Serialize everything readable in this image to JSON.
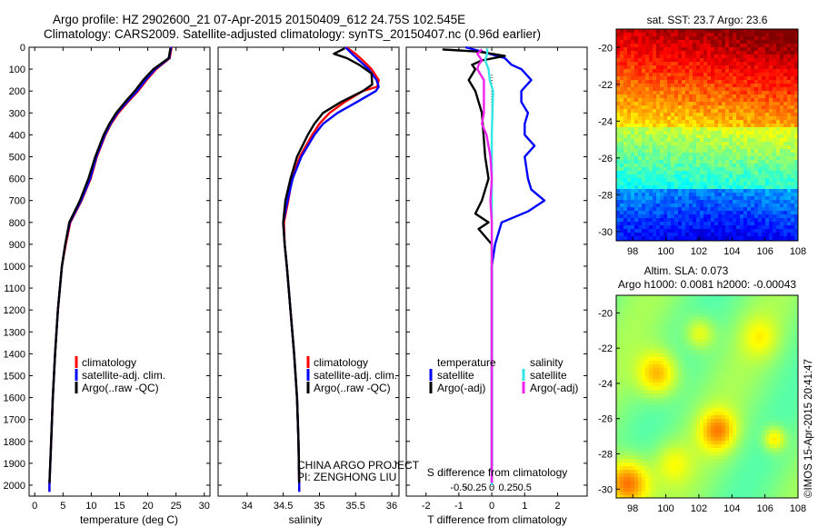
{
  "header": {
    "line1": "Argo profile: HZ 2902600_21 07-Apr-2015 20150409_612 24.75S 102.545E",
    "line2": "Climatology: CARS2009. Satellite-adjusted climatology: synTS_20150407.nc (0.96d earlier)"
  },
  "credit": {
    "project": "CHINA ARGO PROJECT",
    "pi": "PI: ZENGHONG LIU",
    "footer": "©IMOS 15-Apr-2015 20:41:47"
  },
  "colors": {
    "climatology": "#ff0000",
    "satellite": "#0000ff",
    "argo": "#000000",
    "sal_satellite": "#33e6e6",
    "sal_argo": "#ee22ee"
  },
  "depth_ticks": [
    0,
    100,
    200,
    300,
    400,
    500,
    600,
    700,
    800,
    900,
    1000,
    1100,
    1200,
    1300,
    1400,
    1500,
    1600,
    1700,
    1800,
    1900,
    2000
  ],
  "chart_data": [
    {
      "type": "line",
      "panel": "temperature",
      "xlabel": "temperature (deg C)",
      "xlim": [
        -1,
        31
      ],
      "xticks": [
        0,
        5,
        10,
        15,
        20,
        25,
        30
      ],
      "ylim": [
        2050,
        0
      ],
      "legend": {
        "placement": "lower-left",
        "entries": [
          "climatology",
          "satellite-adj. clim.",
          "Argo(..raw -QC)"
        ]
      },
      "series": [
        {
          "name": "climatology",
          "color": "#ff0000",
          "depth": [
            0,
            50,
            100,
            150,
            200,
            250,
            300,
            350,
            400,
            500,
            600,
            700,
            800,
            900,
            1000,
            1200,
            1400,
            1600,
            1800,
            2000,
            2030
          ],
          "values": [
            24.2,
            23.9,
            21.5,
            19.8,
            18.3,
            16.5,
            14.8,
            13.5,
            12.5,
            11.0,
            9.9,
            8.3,
            6.3,
            5.5,
            4.8,
            4.1,
            3.6,
            3.2,
            2.9,
            2.6,
            2.6
          ]
        },
        {
          "name": "satellite-adj. clim.",
          "color": "#0000ff",
          "depth": [
            0,
            50,
            100,
            150,
            200,
            250,
            300,
            350,
            400,
            500,
            600,
            700,
            800,
            900,
            1000,
            1200,
            1400,
            1600,
            1800,
            2000,
            2030
          ],
          "values": [
            24.1,
            23.8,
            21.3,
            19.6,
            18.1,
            16.3,
            14.6,
            13.4,
            12.4,
            10.9,
            9.8,
            8.2,
            6.2,
            5.4,
            4.8,
            4.1,
            3.6,
            3.2,
            2.9,
            2.6,
            2.6
          ]
        },
        {
          "name": "Argo(..raw -QC)",
          "color": "#000000",
          "depth": [
            5,
            50,
            100,
            150,
            200,
            250,
            300,
            350,
            400,
            500,
            600,
            700,
            800,
            900,
            1000,
            1200,
            1400,
            1600,
            1800,
            1990
          ],
          "values": [
            24.0,
            23.7,
            21.0,
            19.2,
            17.7,
            16.0,
            14.4,
            13.2,
            12.2,
            10.7,
            9.5,
            8.0,
            6.1,
            5.4,
            4.8,
            4.1,
            3.6,
            3.2,
            2.9,
            2.6
          ]
        }
      ]
    },
    {
      "type": "line",
      "panel": "salinity",
      "xlabel": "salinity",
      "xlim": [
        33.6,
        36.1
      ],
      "xticks": [
        34,
        34.5,
        35,
        35.5,
        36
      ],
      "ylim": [
        2050,
        0
      ],
      "legend": {
        "placement": "lower-right",
        "entries": [
          "climatology",
          "satellite-adj. clim.",
          "Argo(..raw -QC)"
        ]
      },
      "series": [
        {
          "name": "climatology",
          "color": "#ff0000",
          "depth": [
            0,
            30,
            60,
            100,
            150,
            180,
            200,
            250,
            300,
            350,
            400,
            500,
            600,
            700,
            800,
            900,
            1000,
            1200,
            1400,
            1600,
            1800,
            2000,
            2030
          ],
          "values": [
            35.37,
            35.5,
            35.6,
            35.72,
            35.82,
            35.8,
            35.6,
            35.35,
            35.14,
            35.0,
            34.9,
            34.73,
            34.62,
            34.57,
            34.51,
            34.52,
            34.55,
            34.6,
            34.65,
            34.69,
            34.71,
            34.72,
            34.72
          ]
        },
        {
          "name": "satellite-adj. clim.",
          "color": "#0000ff",
          "depth": [
            0,
            30,
            60,
            100,
            150,
            180,
            200,
            250,
            300,
            350,
            400,
            500,
            600,
            700,
            800,
            900,
            1000,
            1200,
            1400,
            1600,
            1800,
            2000,
            2030
          ],
          "values": [
            35.36,
            35.45,
            35.55,
            35.68,
            35.79,
            35.82,
            35.78,
            35.52,
            35.25,
            35.05,
            34.93,
            34.75,
            34.63,
            34.56,
            34.5,
            34.52,
            34.55,
            34.6,
            34.65,
            34.69,
            34.71,
            34.72,
            34.72
          ]
        },
        {
          "name": "Argo(..raw -QC)",
          "color": "#000000",
          "depth": [
            5,
            30,
            50,
            80,
            120,
            170,
            200,
            250,
            300,
            350,
            400,
            500,
            600,
            700,
            800,
            900,
            1000,
            1200,
            1400,
            1600,
            1800,
            1990
          ],
          "values": [
            35.35,
            35.2,
            35.38,
            35.55,
            35.72,
            35.73,
            35.6,
            35.3,
            35.05,
            34.93,
            34.84,
            34.69,
            34.6,
            34.53,
            34.5,
            34.52,
            34.55,
            34.6,
            34.65,
            34.69,
            34.71,
            34.72
          ]
        }
      ]
    },
    {
      "type": "line",
      "panel": "difference",
      "xlabel": "T difference from climatology",
      "xlabel_top": "S difference from climatology",
      "xlim": [
        -2.6,
        2.9
      ],
      "xticks": [
        -2,
        -1,
        0,
        1,
        2
      ],
      "xticks_top": [
        -0.5,
        -0.25,
        0,
        0.25,
        0.5
      ],
      "xticks_top_labels": [
        "-0.5",
        "-0.25",
        "0",
        "0.25",
        "0.5"
      ],
      "ylim": [
        2050,
        0
      ],
      "legend": {
        "placement": "lower-center",
        "headers": [
          "temperature",
          "salinity"
        ],
        "entries": [
          "satellite",
          "Argo(-adj)",
          "satellite",
          "Argo(-adj)"
        ]
      },
      "series": [
        {
          "name": "satellite",
          "quantity": "temperature",
          "color": "#0000ff",
          "depth": [
            0,
            20,
            50,
            80,
            100,
            150,
            200,
            250,
            300,
            350,
            400,
            450,
            500,
            600,
            650,
            700,
            750,
            800,
            900,
            1000,
            1200,
            1400,
            1600,
            1800,
            2000
          ],
          "values": [
            -0.8,
            -0.3,
            0.4,
            0.6,
            0.9,
            1.2,
            0.9,
            0.9,
            1.1,
            1.0,
            1.0,
            1.3,
            1.0,
            1.1,
            1.2,
            1.6,
            1.1,
            0.3,
            0.1,
            0.0,
            0.0,
            0.0,
            0.0,
            0.0,
            0.0
          ]
        },
        {
          "name": "Argo(-adj)",
          "quantity": "temperature",
          "color": "#000000",
          "depth": [
            10,
            20,
            40,
            60,
            80,
            100,
            150,
            200,
            300,
            400,
            500,
            600,
            700,
            760,
            800,
            830,
            900,
            1000,
            1200,
            1400,
            1600,
            1800,
            1990
          ],
          "values": [
            -1.5,
            -0.4,
            0.4,
            -0.3,
            -0.6,
            -0.5,
            -0.7,
            -0.5,
            -0.3,
            -0.25,
            -0.2,
            -0.1,
            -0.3,
            -0.5,
            -0.1,
            -0.4,
            0.0,
            0.0,
            0.0,
            0.0,
            0.0,
            0.0,
            0.0
          ]
        },
        {
          "name": "satellite",
          "quantity": "salinity",
          "color": "#33e6e6",
          "depth": [
            5,
            30,
            60,
            100,
            150,
            200,
            300,
            400,
            500,
            600,
            700,
            800,
            900,
            1000,
            1200,
            1400,
            1600,
            1800,
            2000
          ],
          "values": [
            -0.07,
            -0.07,
            -0.1,
            -0.05,
            -0.03,
            0.02,
            0.01,
            0.0,
            0.0,
            0.0,
            0.0,
            0.0,
            0.0,
            0.0,
            0.0,
            0.0,
            0.0,
            0.0,
            0.0
          ]
        },
        {
          "name": "Argo(-adj)",
          "quantity": "salinity",
          "color": "#ee22ee",
          "depth": [
            10,
            30,
            60,
            80,
            100,
            150,
            200,
            300,
            350,
            400,
            500,
            600,
            700,
            800,
            900,
            1000,
            1200,
            1400,
            1600,
            1800,
            1990
          ],
          "values": [
            -0.15,
            -0.22,
            -0.15,
            -0.2,
            -0.22,
            -0.12,
            -0.12,
            -0.12,
            -0.15,
            -0.08,
            -0.02,
            0.0,
            -0.02,
            0.0,
            0.0,
            0.0,
            0.0,
            0.0,
            0.0,
            0.0,
            0.0
          ]
        }
      ]
    },
    {
      "type": "heatmap",
      "panel": "sst",
      "title": "sat. SST: 23.7  Argo: 23.6",
      "xlim": [
        97,
        108
      ],
      "ylim": [
        -30.5,
        -19
      ],
      "xticks": [
        98,
        100,
        102,
        104,
        106,
        108
      ],
      "yticks": [
        -20,
        -22,
        -24,
        -26,
        -28,
        -30
      ],
      "colormap": "jet"
    },
    {
      "type": "heatmap",
      "panel": "sla",
      "title": "Altim. SLA: 0.073",
      "subtitle": "Argo h1000: 0.0081  h2000: -0.00043",
      "xlim": [
        97,
        108
      ],
      "ylim": [
        -30.5,
        -19
      ],
      "xticks": [
        98,
        100,
        102,
        104,
        106,
        108
      ],
      "yticks": [
        -20,
        -22,
        -24,
        -26,
        -28,
        -30
      ],
      "colormap": "jet"
    }
  ]
}
